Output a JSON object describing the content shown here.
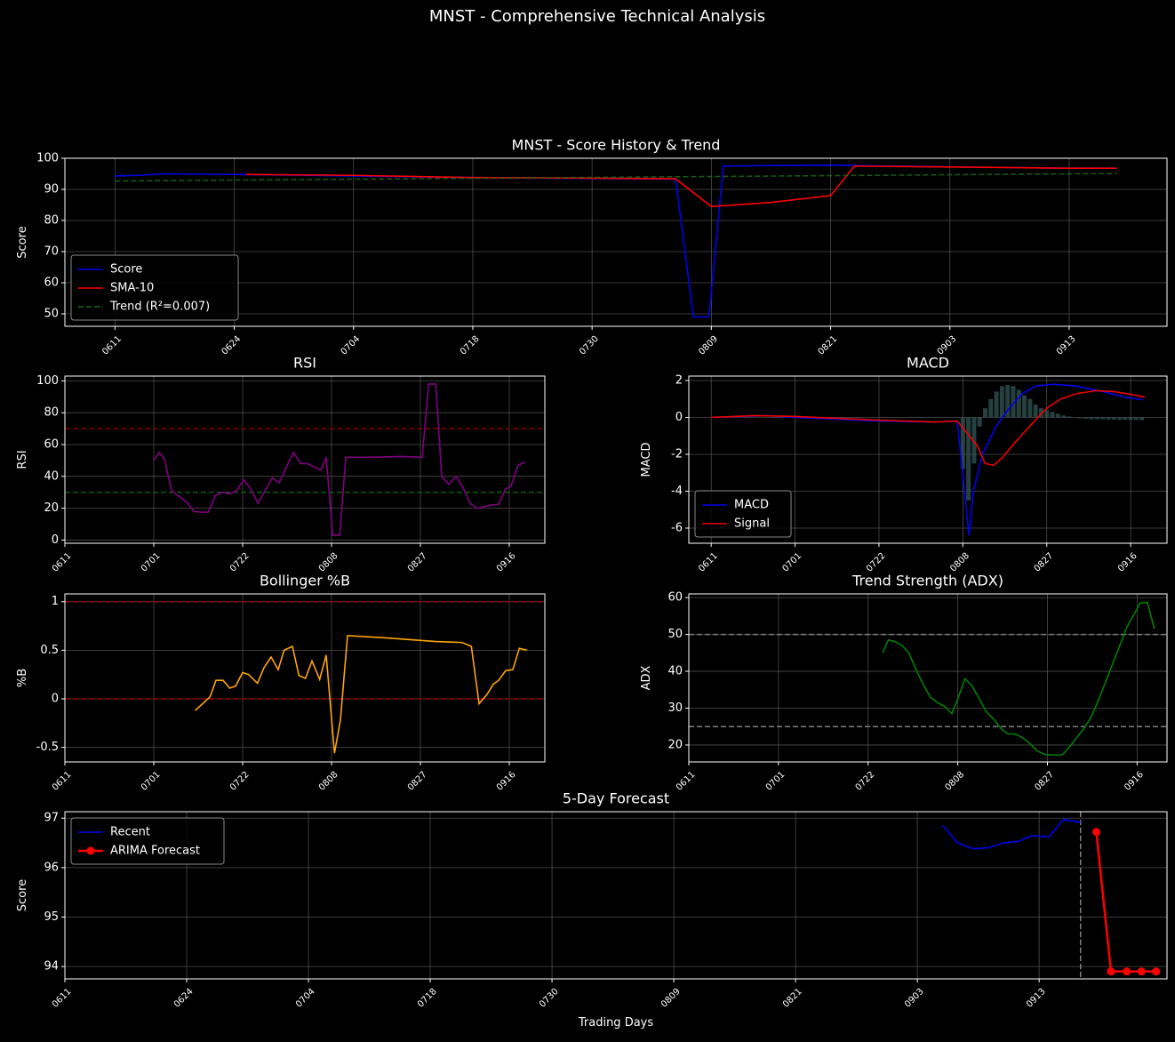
{
  "title": "MNST - Comprehensive Technical Analysis",
  "chart_data": [
    {
      "type": "line",
      "title": "MNST - Score History & Trend",
      "ylabel": "Score",
      "grid": true,
      "legend": "lower left",
      "xlim": [
        -4.2,
        88.2
      ],
      "ylim": [
        46,
        100
      ],
      "xticks": [
        {
          "value": 0,
          "label": "0611"
        },
        {
          "value": 10,
          "label": "0624"
        },
        {
          "value": 20,
          "label": "0704"
        },
        {
          "value": 30,
          "label": "0718"
        },
        {
          "value": 40,
          "label": "0730"
        },
        {
          "value": 50,
          "label": "0809"
        },
        {
          "value": 60,
          "label": "0821"
        },
        {
          "value": 70,
          "label": "0903"
        },
        {
          "value": 80,
          "label": "0913"
        }
      ],
      "yticks": [
        50,
        60,
        70,
        80,
        90,
        100
      ],
      "series": [
        {
          "name": "Score",
          "color": "#0000ee",
          "x": [
            0,
            2,
            4,
            10,
            20,
            30,
            40,
            47,
            48.5,
            49.8,
            51,
            60,
            65,
            75,
            80,
            84
          ],
          "values": [
            94.3,
            94.5,
            95,
            94.8,
            94.3,
            93.8,
            93.5,
            93.3,
            49,
            49,
            97.5,
            97.8,
            97.5,
            97,
            96.8,
            96.8
          ]
        },
        {
          "name": "SMA-10",
          "color": "#ff0000",
          "x": [
            11,
            20,
            30,
            40,
            47,
            50,
            55,
            60,
            62,
            70,
            80,
            84
          ],
          "values": [
            94.8,
            94.5,
            93.8,
            93.6,
            93.4,
            84.5,
            85.8,
            88,
            97.5,
            97.2,
            96.8,
            96.8
          ]
        },
        {
          "name": "Trend (R²=0.007)",
          "color": "#1f6b1f",
          "linestyle": "dashed",
          "x": [
            0,
            84
          ],
          "values": [
            92.7,
            95.1
          ]
        }
      ]
    },
    {
      "type": "line",
      "title": "RSI",
      "ylabel": "RSI",
      "grid": true,
      "xlim": [
        0,
        81
      ],
      "ylim": [
        -2,
        103
      ],
      "xticks": [
        {
          "value": 0,
          "label": "0611"
        },
        {
          "value": 15,
          "label": "0701"
        },
        {
          "value": 30,
          "label": "0722"
        },
        {
          "value": 45,
          "label": "0808"
        },
        {
          "value": 60,
          "label": "0827"
        },
        {
          "value": 75,
          "label": "0916"
        }
      ],
      "yticks": [
        0,
        20,
        40,
        60,
        80,
        100
      ],
      "hlines": [
        {
          "y": 70,
          "color": "#800000"
        },
        {
          "y": 30,
          "color": "#0b5a0b"
        }
      ],
      "series": [
        {
          "color": "#800080",
          "x": [
            15,
            15.9,
            16.8,
            18,
            19,
            20.5,
            21.8,
            23,
            24.2,
            25.4,
            26.6,
            27.8,
            29,
            30.2,
            31.4,
            32.6,
            33.8,
            35,
            36.2,
            37.4,
            38.6,
            39.8,
            41,
            42,
            43.2,
            44.1,
            45.2,
            46.4,
            47.4,
            49,
            52,
            56.6,
            60.3,
            61.4,
            62.6,
            63.6,
            64.8,
            66,
            67.2,
            68.4,
            69.6,
            70.8,
            72,
            73.2,
            74.4,
            75.3,
            76.5,
            77.7
          ],
          "values": [
            50,
            55,
            51,
            31,
            28,
            24,
            18,
            17.5,
            17.5,
            28,
            30,
            29,
            31,
            38,
            32,
            23,
            31,
            39,
            36,
            46,
            55,
            48,
            48,
            46,
            44,
            52,
            3,
            3,
            52,
            52,
            52,
            52.5,
            52,
            98,
            98,
            40,
            35,
            40,
            33,
            23,
            20,
            21,
            22,
            22.5,
            32,
            34,
            47,
            49
          ]
        }
      ]
    },
    {
      "type": "line",
      "title": "MACD",
      "ylabel": "MACD",
      "grid": true,
      "legend": "lower left",
      "xlim": [
        -4,
        81.5
      ],
      "ylim": [
        -6.82,
        2.24
      ],
      "xticks": [
        {
          "value": 0,
          "label": "0611"
        },
        {
          "value": 15,
          "label": "0701"
        },
        {
          "value": 30,
          "label": "0722"
        },
        {
          "value": 45,
          "label": "0808"
        },
        {
          "value": 60,
          "label": "0827"
        },
        {
          "value": 75,
          "label": "0916"
        }
      ],
      "yticks": [
        -6,
        -4,
        -2,
        0,
        2
      ],
      "series": [
        {
          "kind": "bar",
          "color": "#2f4f4f",
          "x": [
            36,
            37,
            38,
            39,
            40,
            41,
            42,
            43,
            44,
            45,
            46,
            47,
            48,
            49,
            50,
            51,
            52,
            53,
            54,
            55,
            56,
            57,
            58,
            59,
            60,
            61,
            62,
            63,
            64,
            65,
            66,
            67,
            68,
            69,
            70,
            71,
            72,
            73,
            74,
            75,
            76,
            77
          ],
          "values": [
            0.02,
            0.03,
            0.03,
            0.03,
            0.03,
            0.03,
            0.02,
            0.02,
            0,
            -2.8,
            -4.5,
            -2.5,
            -0.5,
            0.5,
            1.0,
            1.4,
            1.7,
            1.75,
            1.7,
            1.5,
            1.2,
            1.0,
            0.7,
            0.5,
            0.4,
            0.3,
            0.2,
            0.1,
            0.05,
            0,
            -0.05,
            -0.08,
            -0.1,
            -0.1,
            -0.1,
            -0.12,
            -0.12,
            -0.13,
            -0.13,
            -0.14,
            -0.14,
            -0.15
          ]
        },
        {
          "name": "MACD",
          "color": "#0000ee",
          "x": [
            0,
            10,
            15,
            30,
            40,
            44,
            46.1,
            46.9,
            48.5,
            50.9,
            53.3,
            55.7,
            58.1,
            61.2,
            65.2,
            70,
            74,
            77.2
          ],
          "values": [
            0,
            0.1,
            0,
            -0.2,
            -0.25,
            -0.2,
            -6.4,
            -4,
            -2,
            -0.5,
            0.5,
            1.3,
            1.7,
            1.8,
            1.7,
            1.4,
            1.1,
            0.95
          ]
        },
        {
          "name": "Signal",
          "color": "#ee0000",
          "x": [
            0,
            8,
            15,
            30,
            40,
            44,
            47.5,
            49,
            50.5,
            52,
            54.5,
            57.5,
            60,
            62.5,
            65.5,
            69,
            72,
            75,
            77.5
          ],
          "values": [
            0,
            0.1,
            0.05,
            -0.15,
            -0.25,
            -0.2,
            -1.5,
            -2.5,
            -2.6,
            -2.2,
            -1.3,
            -0.3,
            0.5,
            1.0,
            1.3,
            1.45,
            1.4,
            1.25,
            1.1
          ]
        }
      ]
    },
    {
      "type": "line",
      "title": "Bollinger %B",
      "ylabel": "%B",
      "grid": true,
      "xlim": [
        0,
        81
      ],
      "ylim": [
        -0.65,
        1.08
      ],
      "xticks": [
        {
          "value": 0,
          "label": "0611"
        },
        {
          "value": 15,
          "label": "0701"
        },
        {
          "value": 30,
          "label": "0722"
        },
        {
          "value": 45,
          "label": "0808"
        },
        {
          "value": 60,
          "label": "0827"
        },
        {
          "value": 75,
          "label": "0916"
        }
      ],
      "yticks": [
        -0.5,
        0.0,
        0.5,
        1.0
      ],
      "hlines": [
        {
          "y": 1,
          "color": "#a00000"
        },
        {
          "y": 0,
          "color": "#a00000"
        }
      ],
      "series": [
        {
          "color": "#ffa500",
          "x": [
            22,
            24.5,
            25.5,
            26.7,
            27.8,
            28.8,
            30,
            31,
            32.5,
            33.6,
            34.8,
            36,
            37,
            38.4,
            39.5,
            40.6,
            41.7,
            43,
            44.1,
            45.5,
            46.5,
            47.7,
            53.6,
            58,
            62.6,
            67,
            68.6,
            69.9,
            71.3,
            72.3,
            73.2,
            74.4,
            75.6,
            76.7,
            78
          ],
          "values": [
            -0.12,
            0.02,
            0.19,
            0.19,
            0.11,
            0.13,
            0.27,
            0.25,
            0.16,
            0.32,
            0.43,
            0.3,
            0.5,
            0.54,
            0.24,
            0.21,
            0.39,
            0.2,
            0.45,
            -0.56,
            -0.22,
            0.65,
            0.63,
            0.61,
            0.59,
            0.58,
            0.54,
            -0.05,
            0.05,
            0.15,
            0.19,
            0.29,
            0.3,
            0.52,
            0.5
          ]
        }
      ]
    },
    {
      "type": "line",
      "title": "Trend Strength (ADX)",
      "ylabel": "ADX",
      "grid": true,
      "xlim": [
        0,
        80
      ],
      "ylim": [
        15.4,
        61
      ],
      "xticks": [
        {
          "value": 0,
          "label": "0611"
        },
        {
          "value": 15,
          "label": "0701"
        },
        {
          "value": 30,
          "label": "0722"
        },
        {
          "value": 45,
          "label": "0808"
        },
        {
          "value": 60,
          "label": "0827"
        },
        {
          "value": 75,
          "label": "0916"
        }
      ],
      "yticks": [
        20,
        30,
        40,
        50,
        60
      ],
      "hlines": [
        {
          "y": 50,
          "color": "#808080"
        },
        {
          "y": 25,
          "color": "#808080"
        }
      ],
      "series": [
        {
          "color": "#008000",
          "x": [
            32.4,
            33.4,
            34.6,
            35.7,
            36.8,
            38,
            39.2,
            40.4,
            41.6,
            42.8,
            44,
            45,
            46.2,
            47.4,
            48.6,
            49.8,
            51,
            52.2,
            53.4,
            54.6,
            55.8,
            57,
            58.2,
            59.4,
            60.6,
            62.5,
            63.7,
            64.9,
            66.1,
            67.3,
            68.5,
            69.7,
            70.9,
            72.1,
            73.3,
            74.5,
            75.5,
            76.7,
            77.9
          ],
          "values": [
            45,
            48.5,
            48,
            47,
            45,
            40.5,
            36.5,
            33,
            31.5,
            30.5,
            28.5,
            32.5,
            38,
            36,
            32.5,
            29,
            27,
            24.5,
            23,
            23,
            22,
            20.5,
            18.5,
            17.5,
            17.3,
            17.3,
            19.5,
            22,
            24.5,
            27.5,
            32,
            37,
            42,
            47,
            52,
            55.5,
            58.5,
            58.7,
            51.5
          ]
        }
      ]
    },
    {
      "type": "line",
      "title": "5-Day Forecast",
      "ylabel": "Score",
      "xlabel": "Trading Days",
      "grid": true,
      "legend": "upper left",
      "xlim": [
        0,
        90.5
      ],
      "ylim": [
        93.75,
        97.13
      ],
      "xticks": [
        {
          "value": 0,
          "label": "0611"
        },
        {
          "value": 10,
          "label": "0624"
        },
        {
          "value": 20,
          "label": "0704"
        },
        {
          "value": 30,
          "label": "0718"
        },
        {
          "value": 40,
          "label": "0730"
        },
        {
          "value": 50,
          "label": "0809"
        },
        {
          "value": 60,
          "label": "0821"
        },
        {
          "value": 70,
          "label": "0903"
        },
        {
          "value": 80,
          "label": "0913"
        }
      ],
      "yticks": [
        94,
        95,
        96,
        97
      ],
      "vlines": [
        {
          "x": 83.4,
          "color": "#808080"
        }
      ],
      "series": [
        {
          "name": "Recent",
          "color": "#0000ee",
          "x": [
            72.1,
            73.3,
            74.6,
            75.8,
            77.1,
            78.3,
            79.5,
            80.8,
            82,
            83.4
          ],
          "values": [
            96.85,
            96.5,
            96.38,
            96.4,
            96.5,
            96.53,
            96.65,
            96.62,
            96.97,
            96.92
          ]
        },
        {
          "name": "ARIMA Forecast",
          "color": "#ff0000",
          "marker": "o",
          "linewidth": 2.5,
          "x": [
            84.7,
            85.9,
            87.2,
            88.4,
            89.6
          ],
          "values": [
            96.72,
            93.9,
            93.9,
            93.9,
            93.9
          ]
        }
      ]
    }
  ]
}
